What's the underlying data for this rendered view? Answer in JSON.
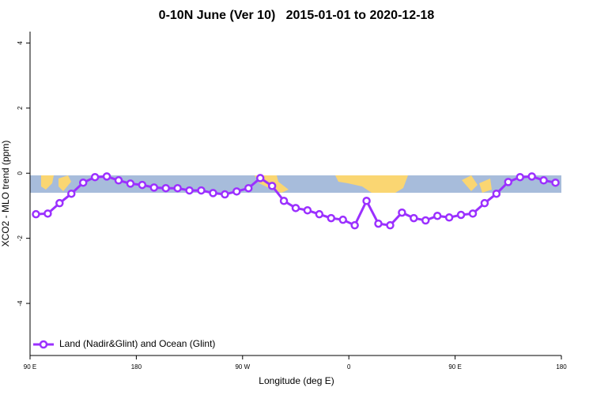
{
  "chart_data": {
    "type": "line",
    "title": "0-10N June (Ver 10)   2015-01-01 to 2020-12-18",
    "x_label": "Longitude (deg E)",
    "y_label": "XCO2 - MLO trend (ppm)",
    "x": [
      95,
      105,
      115,
      125,
      135,
      145,
      155,
      165,
      175,
      185,
      195,
      205,
      215,
      225,
      235,
      245,
      255,
      265,
      275,
      285,
      295,
      305,
      315,
      325,
      335,
      345,
      355,
      365,
      375,
      385,
      395,
      405,
      415,
      425,
      435,
      445,
      455,
      465,
      475,
      485,
      495,
      505,
      515,
      525,
      535
    ],
    "series": [
      {
        "name": "Land (Nadir&Glint) and Ocean (Glint)",
        "color": "#9b30ff",
        "values": [
          -1.26,
          -1.24,
          -0.92,
          -0.63,
          -0.29,
          -0.12,
          -0.1,
          -0.22,
          -0.32,
          -0.36,
          -0.44,
          -0.46,
          -0.46,
          -0.53,
          -0.53,
          -0.61,
          -0.65,
          -0.56,
          -0.46,
          -0.15,
          -0.39,
          -0.85,
          -1.07,
          -1.14,
          -1.26,
          -1.38,
          -1.43,
          -1.6,
          -0.85,
          -1.55,
          -1.6,
          -1.21,
          -1.38,
          -1.45,
          -1.31,
          -1.36,
          -1.28,
          -1.24,
          -0.92,
          -0.63,
          -0.27,
          -0.12,
          -0.1,
          -0.22,
          -0.29
        ]
      }
    ],
    "xlim": [
      90,
      540
    ],
    "xticks": [
      {
        "value": 90,
        "label": "90 E"
      },
      {
        "value": 180,
        "label": "180"
      },
      {
        "value": 270,
        "label": "90 W"
      },
      {
        "value": 360,
        "label": "0"
      },
      {
        "value": 450,
        "label": "90 E"
      },
      {
        "value": 540,
        "label": "180"
      }
    ],
    "ylim": [
      -5.6,
      4.35
    ],
    "yticks": [
      -4,
      -2,
      0,
      2,
      4
    ],
    "legend": "bottom-left"
  }
}
